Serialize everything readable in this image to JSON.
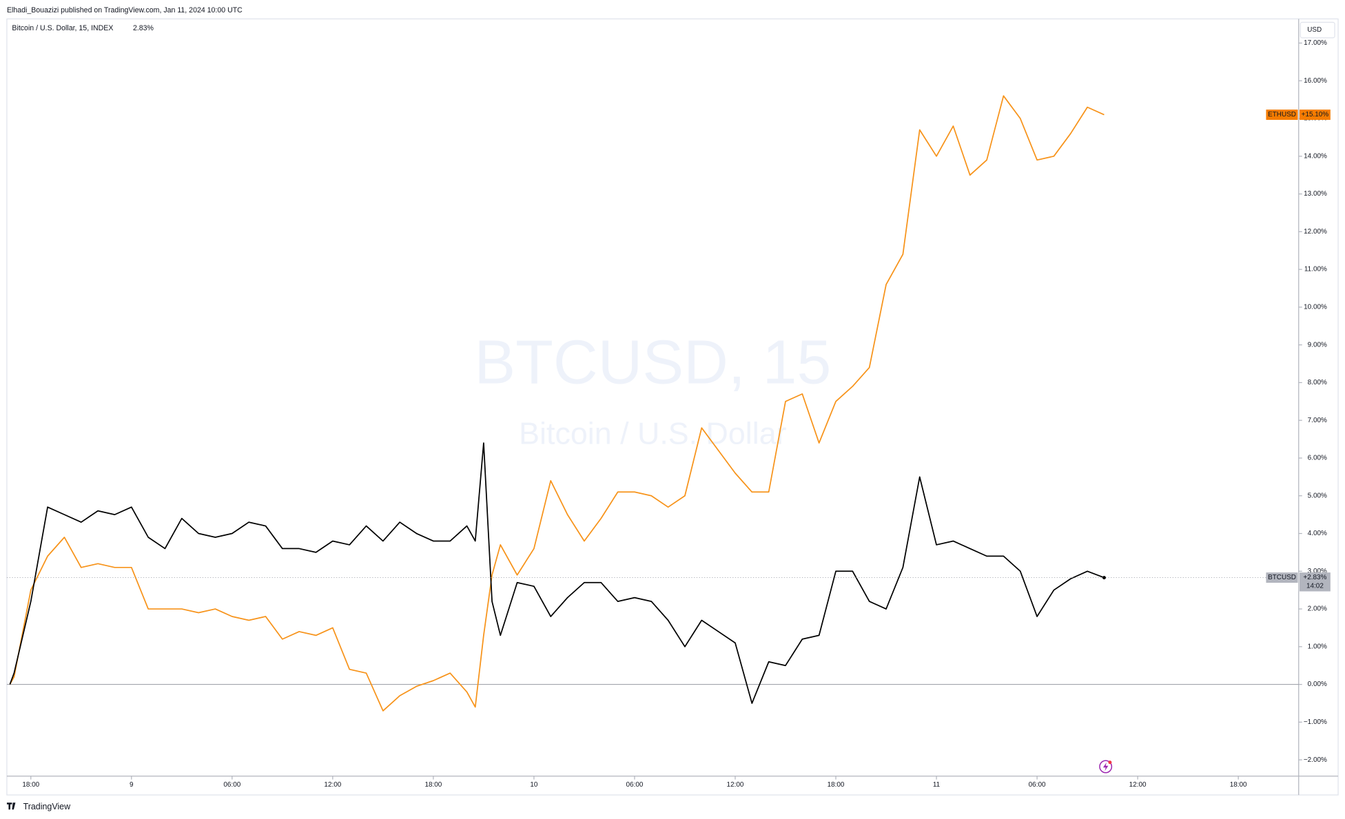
{
  "header": "Elhadi_Bouazizi published on TradingView.com, Jan 11, 2024 10:00 UTC",
  "footer": "TradingView",
  "chart_data": {
    "type": "line",
    "legend_title": "Bitcoin / U.S. Dollar, 15, INDEX",
    "legend_value": "2.83%",
    "watermark": "BTCUSD, 15",
    "watermark_subtitle": "Bitcoin / U.S. Dollar",
    "currency": "USD",
    "countdown": "14:02",
    "x": [
      16.75,
      17,
      18,
      19,
      20,
      21,
      22,
      23,
      24,
      25,
      26,
      27,
      28,
      29,
      30,
      31,
      32,
      33,
      34,
      35,
      36,
      37,
      38,
      39,
      40,
      41,
      42,
      43,
      44,
      44.5,
      45,
      45.5,
      46,
      47,
      48,
      49,
      50,
      51,
      52,
      53,
      54,
      55,
      56,
      57,
      58,
      59,
      60,
      61,
      62,
      63,
      64,
      65,
      66,
      67,
      68,
      69,
      70,
      71,
      72,
      73,
      74,
      75,
      76,
      77,
      78,
      79,
      80,
      81,
      82
    ],
    "xlim": [
      16.57,
      93.6
    ],
    "xticks": [
      {
        "value": 18,
        "label": "18:00"
      },
      {
        "value": 24,
        "label": "9"
      },
      {
        "value": 30,
        "label": "06:00"
      },
      {
        "value": 36,
        "label": "12:00"
      },
      {
        "value": 42,
        "label": "18:00"
      },
      {
        "value": 48,
        "label": "10"
      },
      {
        "value": 54,
        "label": "06:00"
      },
      {
        "value": 60,
        "label": "12:00"
      },
      {
        "value": 66,
        "label": "18:00"
      },
      {
        "value": 72,
        "label": "11"
      },
      {
        "value": 78,
        "label": "06:00"
      },
      {
        "value": 84,
        "label": "12:00"
      },
      {
        "value": 90,
        "label": "18:00"
      }
    ],
    "ylim": [
      -2.43,
      17.64
    ],
    "yticks": [
      {
        "value": -2,
        "label": "−2.00%"
      },
      {
        "value": -1,
        "label": "−1.00%"
      },
      {
        "value": 0,
        "label": "0.00%"
      },
      {
        "value": 1,
        "label": "1.00%"
      },
      {
        "value": 2,
        "label": "2.00%"
      },
      {
        "value": 3,
        "label": "3.00%"
      },
      {
        "value": 4,
        "label": "4.00%"
      },
      {
        "value": 5,
        "label": "5.00%"
      },
      {
        "value": 6,
        "label": "6.00%"
      },
      {
        "value": 7,
        "label": "7.00%"
      },
      {
        "value": 8,
        "label": "8.00%"
      },
      {
        "value": 9,
        "label": "9.00%"
      },
      {
        "value": 10,
        "label": "10.00%"
      },
      {
        "value": 11,
        "label": "11.00%"
      },
      {
        "value": 12,
        "label": "12.00%"
      },
      {
        "value": 13,
        "label": "13.00%"
      },
      {
        "value": 14,
        "label": "14.00%"
      },
      {
        "value": 15,
        "label": "15.00%"
      },
      {
        "value": 16,
        "label": "16.00%"
      },
      {
        "value": 17,
        "label": "17.00%"
      }
    ],
    "zero_line": 0,
    "series": [
      {
        "name": "BTCUSD",
        "color": "#000000",
        "tag_color": "#b2b5be",
        "last_label": "+2.83%",
        "values": [
          0,
          0.3,
          2.2,
          4.7,
          4.5,
          4.3,
          4.6,
          4.5,
          4.7,
          3.9,
          3.6,
          4.4,
          4.0,
          3.9,
          4.0,
          4.3,
          4.2,
          3.6,
          3.6,
          3.5,
          3.8,
          3.7,
          4.2,
          3.8,
          4.3,
          4.0,
          3.8,
          3.8,
          4.2,
          3.8,
          6.4,
          2.2,
          1.3,
          2.7,
          2.6,
          1.8,
          2.3,
          2.7,
          2.7,
          2.2,
          2.3,
          2.2,
          1.7,
          1.0,
          1.7,
          1.4,
          1.1,
          -0.5,
          0.6,
          0.5,
          1.2,
          1.3,
          3.0,
          3.0,
          2.2,
          2.0,
          3.1,
          5.5,
          3.7,
          3.8,
          3.6,
          3.4,
          3.4,
          3.0,
          1.8,
          2.5,
          2.8,
          3.0,
          2.83
        ]
      },
      {
        "name": "ETHUSD",
        "color": "#f7931a",
        "tag_color": "#f57c00",
        "last_label": "+15.10%",
        "values": [
          0,
          0.2,
          2.5,
          3.4,
          3.9,
          3.1,
          3.2,
          3.1,
          3.1,
          2.0,
          2.0,
          2.0,
          1.9,
          2.0,
          1.8,
          1.7,
          1.8,
          1.2,
          1.4,
          1.3,
          1.5,
          0.4,
          0.3,
          -0.7,
          -0.3,
          -0.05,
          0.1,
          0.3,
          -0.2,
          -0.6,
          1.3,
          2.9,
          3.7,
          2.9,
          3.6,
          5.4,
          4.5,
          3.8,
          4.4,
          5.1,
          5.1,
          5.0,
          4.7,
          5.0,
          6.8,
          6.2,
          5.6,
          5.1,
          5.1,
          7.5,
          7.7,
          6.4,
          7.5,
          7.9,
          8.4,
          10.6,
          11.4,
          14.7,
          14.0,
          14.8,
          13.5,
          13.9,
          15.6,
          15.0,
          13.9,
          14.0,
          14.6,
          15.3,
          15.1
        ]
      }
    ]
  }
}
